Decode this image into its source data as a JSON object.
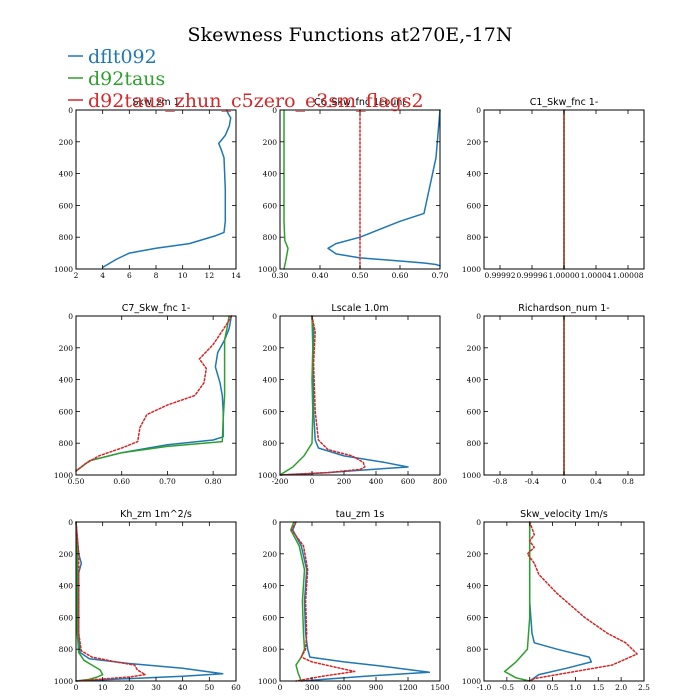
{
  "figure": {
    "title": "Skewness Functions at270E,-17N",
    "colors": {
      "dflt092": "#1f77b4",
      "d92taus": "#2ca02c",
      "d92taus_zhun_c5zero_e3sm_flags2": "#d62728"
    }
  },
  "legend": [
    {
      "name": "dflt092",
      "color": "#1f77b4",
      "dash": "solid"
    },
    {
      "name": "d92taus",
      "color": "#2ca02c",
      "dash": "solid"
    },
    {
      "name": "d92taus_zhun_c5zero_e3sm_flags2",
      "color": "#d62728",
      "dash": "dotted"
    }
  ],
  "chart_data": [
    {
      "type": "line",
      "title": "Skw_zm  1",
      "xlim": [
        2,
        14
      ],
      "ylim": [
        1000,
        0
      ],
      "xticks": [
        2,
        4,
        6,
        8,
        10,
        12,
        14
      ],
      "xtick_labels": [
        "2",
        "4",
        "6",
        "8",
        "10",
        "12",
        "14"
      ],
      "yticks": [
        0,
        200,
        400,
        600,
        800,
        1000
      ],
      "ytick_labels": [
        "0",
        "200",
        "400",
        "600",
        "800",
        "1000"
      ],
      "series": [
        {
          "name": "dflt092",
          "x": [
            4.0,
            4.3,
            5.0,
            6.0,
            8.0,
            10.5,
            12.5,
            13.1,
            13.2,
            13.2,
            13.1,
            12.9,
            12.7,
            13.2,
            13.5,
            13.6,
            13.4,
            13.3
          ],
          "y": [
            990,
            975,
            940,
            900,
            870,
            840,
            790,
            770,
            700,
            500,
            300,
            250,
            210,
            160,
            100,
            50,
            20,
            0
          ]
        },
        {
          "name": "d92taus",
          "x": [],
          "y": []
        },
        {
          "name": "d92taus_zhun_c5zero_e3sm_flags2",
          "x": [],
          "y": []
        }
      ]
    },
    {
      "type": "line",
      "title": "C6_Skw_fnc 1count",
      "xlim": [
        0.3,
        0.7
      ],
      "ylim": [
        1000,
        0
      ],
      "xticks": [
        0.3,
        0.4,
        0.5,
        0.6,
        0.7
      ],
      "xtick_labels": [
        "0.30",
        "0.40",
        "0.50",
        "0.60",
        "0.70"
      ],
      "yticks": [
        0,
        200,
        400,
        600,
        800,
        1000
      ],
      "ytick_labels": [
        "0",
        "200",
        "400",
        "600",
        "800",
        "1000"
      ],
      "series": [
        {
          "name": "dflt092",
          "x": [
            0.7,
            0.69,
            0.66,
            0.6,
            0.5,
            0.44,
            0.42,
            0.44,
            0.5,
            0.6,
            0.66,
            0.69,
            0.7
          ],
          "y": [
            0,
            300,
            650,
            700,
            800,
            840,
            870,
            905,
            930,
            950,
            962,
            972,
            980
          ]
        },
        {
          "name": "d92taus",
          "x": [
            0.31,
            0.31,
            0.31,
            0.312,
            0.32,
            0.315,
            0.31
          ],
          "y": [
            0,
            400,
            700,
            820,
            870,
            940,
            1000
          ]
        },
        {
          "name": "d92taus_zhun_c5zero_e3sm_flags2",
          "x": [
            0.5,
            0.5
          ],
          "y": [
            0,
            1000
          ]
        }
      ]
    },
    {
      "type": "line",
      "title": "C1_Skw_fnc  1-",
      "xlim": [
        0.9999,
        1.0001
      ],
      "ylim": [
        1000,
        0
      ],
      "xticks": [
        0.99992,
        0.99996,
        1.0,
        1.00004,
        1.00008
      ],
      "xtick_labels": [
        "0.99992",
        "0.99996",
        "1.00000",
        "1.00004",
        "1.00008"
      ],
      "yticks": [
        0,
        200,
        400,
        600,
        800,
        1000
      ],
      "ytick_labels": [
        "0",
        "200",
        "400",
        "600",
        "800",
        "1000"
      ],
      "series": [
        {
          "name": "dflt092",
          "x": [
            1.0,
            1.0
          ],
          "y": [
            0,
            1000
          ]
        },
        {
          "name": "d92taus",
          "x": [
            1.0,
            1.0
          ],
          "y": [
            0,
            1000
          ]
        },
        {
          "name": "d92taus_zhun_c5zero_e3sm_flags2",
          "x": [
            1.0,
            1.0
          ],
          "y": [
            0,
            1000
          ]
        }
      ]
    },
    {
      "type": "line",
      "title": "C7_Skw_fnc  1-",
      "xlim": [
        0.5,
        0.85
      ],
      "ylim": [
        1000,
        0
      ],
      "xticks": [
        0.5,
        0.6,
        0.7,
        0.8
      ],
      "xtick_labels": [
        "0.50",
        "0.60",
        "0.70",
        "0.80"
      ],
      "yticks": [
        0,
        200,
        400,
        600,
        800,
        1000
      ],
      "ytick_labels": [
        "0",
        "200",
        "400",
        "600",
        "800",
        "1000"
      ],
      "series": [
        {
          "name": "dflt092",
          "x": [
            0.84,
            0.835,
            0.825,
            0.81,
            0.805,
            0.815,
            0.82,
            0.822,
            0.822,
            0.8,
            0.7,
            0.6,
            0.53,
            0.5
          ],
          "y": [
            0,
            80,
            150,
            230,
            320,
            420,
            500,
            600,
            760,
            780,
            810,
            860,
            910,
            975
          ]
        },
        {
          "name": "d92taus",
          "x": [
            0.835,
            0.83,
            0.825,
            0.825,
            0.825,
            0.822,
            0.82,
            0.7,
            0.6,
            0.53,
            0.5
          ],
          "y": [
            0,
            80,
            150,
            300,
            500,
            650,
            790,
            820,
            860,
            910,
            975
          ]
        },
        {
          "name": "d92taus_zhun_c5zero_e3sm_flags2",
          "x": [
            0.84,
            0.83,
            0.8,
            0.77,
            0.785,
            0.78,
            0.76,
            0.7,
            0.655,
            0.64,
            0.635,
            0.6,
            0.55,
            0.52,
            0.5
          ],
          "y": [
            0,
            50,
            180,
            270,
            330,
            420,
            500,
            560,
            620,
            700,
            790,
            830,
            880,
            930,
            975
          ]
        }
      ]
    },
    {
      "type": "line",
      "title": "Lscale  1.0m",
      "xlim": [
        -200,
        800
      ],
      "ylim": [
        1000,
        0
      ],
      "xticks": [
        -200,
        0,
        200,
        400,
        600,
        800
      ],
      "xtick_labels": [
        "-200",
        "0",
        "200",
        "400",
        "600",
        "800"
      ],
      "yticks": [
        0,
        200,
        400,
        600,
        800,
        1000
      ],
      "ytick_labels": [
        "0",
        "200",
        "400",
        "600",
        "800",
        "1000"
      ],
      "series": [
        {
          "name": "dflt092",
          "x": [
            0,
            10,
            5,
            10,
            20,
            40,
            200,
            450,
            600,
            300,
            100,
            -200
          ],
          "y": [
            0,
            100,
            300,
            600,
            780,
            830,
            880,
            920,
            950,
            970,
            985,
            1000
          ]
        },
        {
          "name": "d92taus",
          "x": [
            0,
            5,
            0,
            5,
            0,
            -50,
            -120,
            -200
          ],
          "y": [
            0,
            200,
            400,
            600,
            800,
            880,
            950,
            1000
          ]
        },
        {
          "name": "d92taus_zhun_c5zero_e3sm_flags2",
          "x": [
            0,
            20,
            10,
            20,
            40,
            100,
            250,
            320,
            330,
            300,
            100,
            -200
          ],
          "y": [
            0,
            100,
            300,
            600,
            780,
            840,
            880,
            920,
            950,
            965,
            985,
            1000
          ]
        }
      ]
    },
    {
      "type": "line",
      "title": "Richardson_num  1-",
      "xlim": [
        -1,
        1
      ],
      "ylim": [
        1000,
        0
      ],
      "xticks": [
        -0.8,
        -0.4,
        0,
        0.4,
        0.8
      ],
      "xtick_labels": [
        "-0.8",
        "-0.4",
        "0",
        "0.4",
        "0.8"
      ],
      "yticks": [
        0,
        200,
        400,
        600,
        800,
        1000
      ],
      "ytick_labels": [
        "0",
        "200",
        "400",
        "600",
        "800",
        "1000"
      ],
      "series": [
        {
          "name": "dflt092",
          "x": [
            0,
            0
          ],
          "y": [
            0,
            1000
          ]
        },
        {
          "name": "d92taus",
          "x": [
            0,
            0
          ],
          "y": [
            0,
            1000
          ]
        },
        {
          "name": "d92taus_zhun_c5zero_e3sm_flags2",
          "x": [
            0,
            0
          ],
          "y": [
            0,
            1000
          ]
        }
      ]
    },
    {
      "type": "line",
      "title": "Kh_zm   1m^2/s",
      "xlim": [
        0,
        60
      ],
      "ylim": [
        1000,
        0
      ],
      "xticks": [
        0,
        10,
        20,
        30,
        40,
        50,
        60
      ],
      "xtick_labels": [
        "0",
        "10",
        "20",
        "30",
        "40",
        "50",
        "60"
      ],
      "yticks": [
        0,
        200,
        400,
        600,
        800,
        1000
      ],
      "ytick_labels": [
        "0",
        "200",
        "400",
        "600",
        "800",
        "1000"
      ],
      "series": [
        {
          "name": "dflt092",
          "x": [
            0,
            1,
            2,
            1,
            1,
            1.5,
            5,
            20,
            40,
            55,
            40,
            20,
            0
          ],
          "y": [
            0,
            200,
            260,
            320,
            700,
            820,
            860,
            890,
            920,
            955,
            970,
            985,
            1000
          ]
        },
        {
          "name": "d92taus",
          "x": [
            0,
            0.5,
            0.5,
            1,
            3,
            6,
            9,
            10,
            8,
            5,
            0
          ],
          "y": [
            0,
            200,
            700,
            820,
            870,
            900,
            930,
            960,
            975,
            990,
            1000
          ]
        },
        {
          "name": "d92taus_zhun_c5zero_e3sm_flags2",
          "x": [
            0,
            1,
            1,
            2,
            6,
            15,
            22,
            23,
            26,
            20,
            8,
            0
          ],
          "y": [
            0,
            200,
            700,
            810,
            850,
            880,
            900,
            930,
            960,
            975,
            990,
            1000
          ]
        }
      ]
    },
    {
      "type": "line",
      "title": "tau_zm   1s",
      "xlim": [
        0,
        1500
      ],
      "ylim": [
        1000,
        0
      ],
      "xticks": [
        0,
        300,
        600,
        900,
        1200,
        1500
      ],
      "xtick_labels": [
        "0",
        "300",
        "600",
        "900",
        "1200",
        "1500"
      ],
      "yticks": [
        0,
        200,
        400,
        600,
        800,
        1000
      ],
      "ytick_labels": [
        "0",
        "200",
        "400",
        "600",
        "800",
        "1000"
      ],
      "series": [
        {
          "name": "dflt092",
          "x": [
            150,
            120,
            200,
            250,
            230,
            240,
            260,
            280,
            600,
            1000,
            1400,
            800,
            200
          ],
          "y": [
            0,
            50,
            150,
            300,
            500,
            700,
            800,
            850,
            880,
            910,
            945,
            970,
            1000
          ]
        },
        {
          "name": "d92taus",
          "x": [
            130,
            100,
            180,
            230,
            210,
            220,
            230,
            200,
            150,
            170,
            200
          ],
          "y": [
            0,
            50,
            150,
            300,
            500,
            700,
            800,
            850,
            900,
            950,
            1000
          ]
        },
        {
          "name": "d92taus_zhun_c5zero_e3sm_flags2",
          "x": [
            150,
            110,
            220,
            260,
            240,
            250,
            240,
            200,
            300,
            500,
            700,
            400,
            150
          ],
          "y": [
            0,
            50,
            150,
            300,
            500,
            700,
            800,
            850,
            880,
            910,
            940,
            970,
            1000
          ]
        }
      ]
    },
    {
      "type": "line",
      "title": "Skw_velocity   1m/s",
      "xlim": [
        -1.0,
        2.5
      ],
      "ylim": [
        1000,
        0
      ],
      "xticks": [
        -1.0,
        -0.5,
        0.0,
        0.5,
        1.0,
        1.5,
        2.0,
        2.5
      ],
      "xtick_labels": [
        "-1.0",
        "-0.5",
        "0.0",
        "0.5",
        "1.0",
        "1.5",
        "2.0",
        "2.5"
      ],
      "yticks": [
        0,
        200,
        400,
        600,
        800,
        1000
      ],
      "ytick_labels": [
        "0",
        "200",
        "400",
        "600",
        "800",
        "1000"
      ],
      "series": [
        {
          "name": "dflt092",
          "x": [
            0,
            0,
            0,
            0.05,
            0.1,
            0.6,
            1.3,
            1.35,
            0.8,
            0.2,
            0
          ],
          "y": [
            0,
            200,
            500,
            700,
            760,
            800,
            850,
            880,
            920,
            960,
            1000
          ]
        },
        {
          "name": "d92taus",
          "x": [
            0,
            0,
            0,
            -0.05,
            -0.3,
            -0.55,
            -0.3,
            0
          ],
          "y": [
            0,
            300,
            600,
            800,
            880,
            940,
            980,
            1000
          ]
        },
        {
          "name": "d92taus_zhun_c5zero_e3sm_flags2",
          "x": [
            0,
            0.1,
            0,
            0.1,
            -0.05,
            0.1,
            0.2,
            0.6,
            1.2,
            1.7,
            2.1,
            2.35,
            1.8,
            0.8,
            0.1,
            0
          ],
          "y": [
            0,
            80,
            120,
            160,
            200,
            260,
            330,
            450,
            600,
            700,
            760,
            830,
            900,
            950,
            985,
            1000
          ]
        }
      ]
    }
  ]
}
